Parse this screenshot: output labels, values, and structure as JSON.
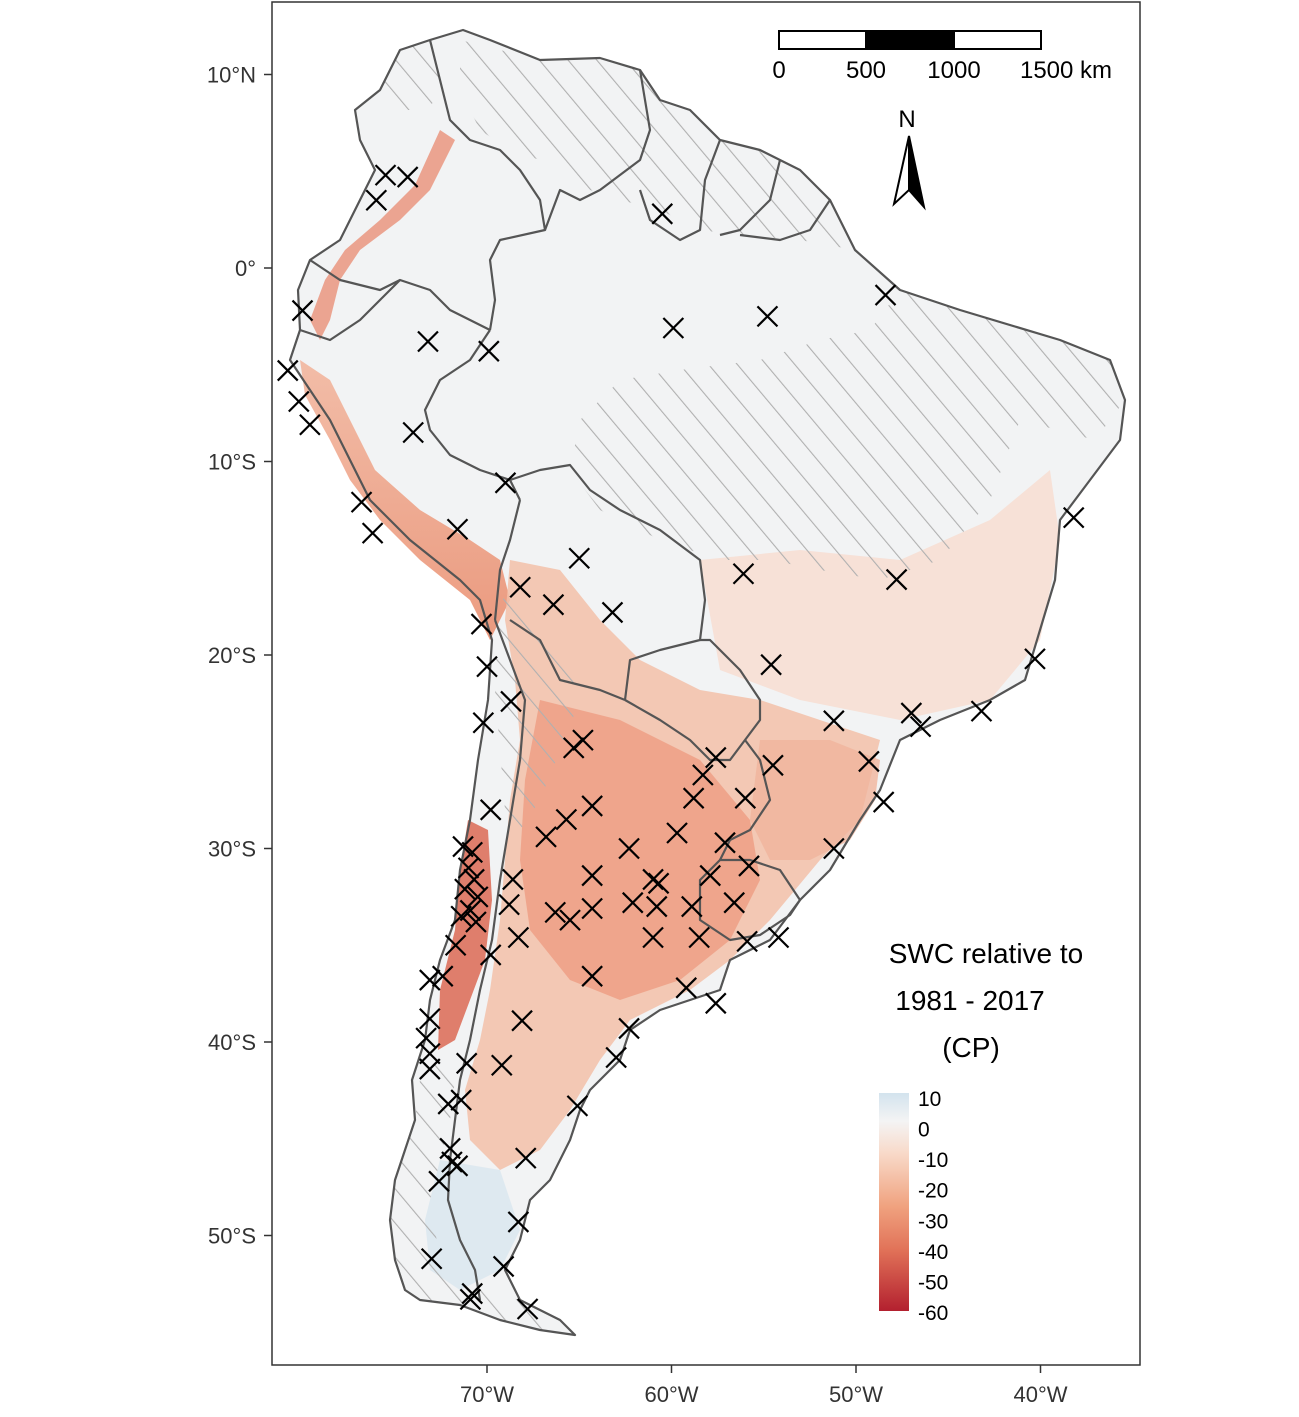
{
  "map": {
    "axes": {
      "y_ticks": [
        {
          "label": "10°N",
          "lat": 10
        },
        {
          "label": "0°",
          "lat": 0
        },
        {
          "label": "10°S",
          "lat": -10
        },
        {
          "label": "20°S",
          "lat": -20
        },
        {
          "label": "30°S",
          "lat": -30
        },
        {
          "label": "40°S",
          "lat": -40
        },
        {
          "label": "50°S",
          "lat": -50
        }
      ],
      "x_ticks": [
        {
          "label": "70°W",
          "lon": -70
        },
        {
          "label": "60°W",
          "lon": -60
        },
        {
          "label": "50°W",
          "lon": -50
        },
        {
          "label": "40°W",
          "lon": -40
        }
      ],
      "lon_range": [
        -82,
        -34
      ],
      "lat_range": [
        -57,
        14
      ]
    },
    "scale_bar": {
      "labels": [
        "0",
        "500",
        "1000",
        "1500 km"
      ]
    },
    "north_arrow": {
      "label": "N"
    },
    "legend": {
      "title_line1": "SWC relative to",
      "title_line2": "1981 - 2017",
      "title_line3": "(CP)",
      "ticks": [
        "10",
        "0",
        "-10",
        "-20",
        "-30",
        "-40",
        "-50",
        "-60"
      ],
      "colors": {
        "high": "#d9e6ef",
        "zero": "#f4f4f4",
        "mid": "#f0a27f",
        "low": "#b3202f"
      }
    },
    "stations": [
      [
        -75.5,
        4.8
      ],
      [
        -74.3,
        4.7
      ],
      [
        -76.0,
        3.5
      ],
      [
        -60.5,
        2.8
      ],
      [
        -48.4,
        -1.4
      ],
      [
        -54.8,
        -2.5
      ],
      [
        -59.9,
        -3.1
      ],
      [
        -80.0,
        -2.2
      ],
      [
        -73.2,
        -3.8
      ],
      [
        -69.9,
        -4.3
      ],
      [
        -80.8,
        -5.3
      ],
      [
        -80.2,
        -6.9
      ],
      [
        -79.6,
        -8.1
      ],
      [
        -74.0,
        -8.5
      ],
      [
        -69.0,
        -11.1
      ],
      [
        -38.2,
        -12.9
      ],
      [
        -76.8,
        -12.1
      ],
      [
        -76.2,
        -13.7
      ],
      [
        -71.6,
        -13.5
      ],
      [
        -65.0,
        -15.0
      ],
      [
        -56.1,
        -15.8
      ],
      [
        -47.8,
        -16.1
      ],
      [
        -68.2,
        -16.5
      ],
      [
        -66.4,
        -17.4
      ],
      [
        -63.2,
        -17.8
      ],
      [
        -70.3,
        -18.4
      ],
      [
        -40.3,
        -20.2
      ],
      [
        -70.0,
        -20.6
      ],
      [
        -54.6,
        -20.5
      ],
      [
        -68.7,
        -22.4
      ],
      [
        -70.2,
        -23.5
      ],
      [
        -51.2,
        -23.4
      ],
      [
        -47.0,
        -23.0
      ],
      [
        -46.5,
        -23.7
      ],
      [
        -43.2,
        -22.9
      ],
      [
        -65.3,
        -24.8
      ],
      [
        -64.8,
        -24.4
      ],
      [
        -57.6,
        -25.3
      ],
      [
        -54.5,
        -25.7
      ],
      [
        -49.3,
        -25.5
      ],
      [
        -58.3,
        -26.2
      ],
      [
        -58.8,
        -27.4
      ],
      [
        -56.0,
        -27.4
      ],
      [
        -64.3,
        -27.8
      ],
      [
        -48.5,
        -27.6
      ],
      [
        -69.8,
        -28.0
      ],
      [
        -65.7,
        -28.5
      ],
      [
        -66.8,
        -29.4
      ],
      [
        -59.7,
        -29.2
      ],
      [
        -57.1,
        -29.7
      ],
      [
        -51.2,
        -30.0
      ],
      [
        -62.3,
        -30.0
      ],
      [
        -71.3,
        -29.9
      ],
      [
        -70.8,
        -30.2
      ],
      [
        -71.0,
        -31.0
      ],
      [
        -70.7,
        -31.6
      ],
      [
        -71.2,
        -32.1
      ],
      [
        -70.5,
        -32.5
      ],
      [
        -70.9,
        -33.2
      ],
      [
        -71.4,
        -33.5
      ],
      [
        -70.6,
        -33.8
      ],
      [
        -68.6,
        -31.6
      ],
      [
        -64.3,
        -31.4
      ],
      [
        -61.0,
        -31.6
      ],
      [
        -60.7,
        -31.8
      ],
      [
        -57.9,
        -31.4
      ],
      [
        -55.8,
        -30.9
      ],
      [
        -56.6,
        -32.8
      ],
      [
        -58.9,
        -33.0
      ],
      [
        -62.1,
        -32.8
      ],
      [
        -64.3,
        -33.1
      ],
      [
        -65.5,
        -33.7
      ],
      [
        -66.3,
        -33.3
      ],
      [
        -68.8,
        -32.9
      ],
      [
        -60.8,
        -33.0
      ],
      [
        -58.5,
        -34.6
      ],
      [
        -54.2,
        -34.6
      ],
      [
        -55.9,
        -34.8
      ],
      [
        -61.0,
        -34.6
      ],
      [
        -68.3,
        -34.6
      ],
      [
        -69.8,
        -35.5
      ],
      [
        -71.7,
        -35.0
      ],
      [
        -72.4,
        -36.6
      ],
      [
        -73.1,
        -36.8
      ],
      [
        -64.3,
        -36.6
      ],
      [
        -59.2,
        -37.2
      ],
      [
        -57.6,
        -38.0
      ],
      [
        -73.1,
        -38.8
      ],
      [
        -68.1,
        -38.9
      ],
      [
        -73.3,
        -39.8
      ],
      [
        -62.3,
        -39.3
      ],
      [
        -73.1,
        -40.6
      ],
      [
        -73.1,
        -41.4
      ],
      [
        -69.2,
        -41.2
      ],
      [
        -71.1,
        -41.1
      ],
      [
        -63.0,
        -40.8
      ],
      [
        -72.1,
        -43.2
      ],
      [
        -65.1,
        -43.3
      ],
      [
        -71.4,
        -43.0
      ],
      [
        -72.0,
        -45.5
      ],
      [
        -71.6,
        -46.4
      ],
      [
        -71.9,
        -46.2
      ],
      [
        -67.9,
        -46.0
      ],
      [
        -72.6,
        -47.2
      ],
      [
        -68.3,
        -49.3
      ],
      [
        -73.0,
        -51.2
      ],
      [
        -69.1,
        -51.6
      ],
      [
        -70.8,
        -53.0
      ],
      [
        -70.9,
        -53.3
      ],
      [
        -67.8,
        -53.8
      ]
    ]
  }
}
